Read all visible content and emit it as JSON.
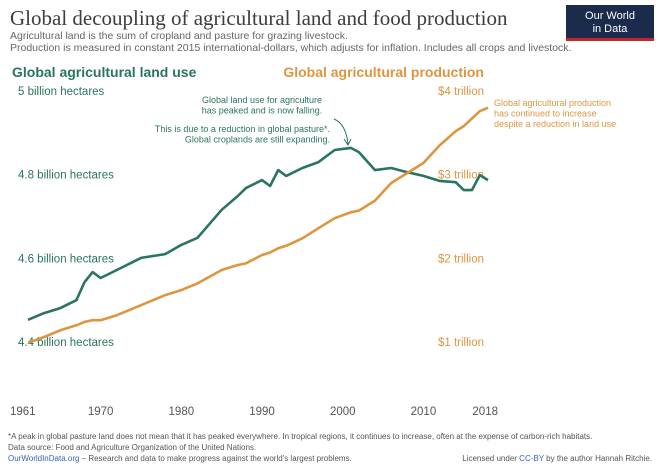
{
  "chart_data": {
    "type": "line",
    "title": "Global decoupling of agricultural land and food production",
    "subtitle": [
      "Agricultural land is the sum of cropland and pasture for grazing livestock.",
      "Production is measured in constant 2015 international-dollars, which adjusts for inflation. Includes all crops and livestock."
    ],
    "x": [
      1961,
      1963,
      1965,
      1967,
      1968,
      1969,
      1970,
      1972,
      1975,
      1978,
      1980,
      1982,
      1985,
      1987,
      1988,
      1990,
      1991,
      1992,
      1993,
      1995,
      1997,
      1999,
      2001,
      2002,
      2004,
      2006,
      2008,
      2010,
      2012,
      2014,
      2015,
      2016,
      2017,
      2018
    ],
    "series": [
      {
        "name": "Global agricultural land use",
        "color": "#2a7461",
        "values": [
          4.453,
          4.469,
          4.481,
          4.5,
          4.543,
          4.567,
          4.553,
          4.572,
          4.601,
          4.61,
          4.632,
          4.649,
          4.716,
          4.749,
          4.768,
          4.787,
          4.773,
          4.811,
          4.797,
          4.816,
          4.83,
          4.859,
          4.864,
          4.854,
          4.811,
          4.816,
          4.806,
          4.797,
          4.785,
          4.782,
          4.763,
          4.763,
          4.799,
          4.787
        ]
      },
      {
        "name": "Global agricultural production",
        "color": "#dd9540",
        "axis": "y2",
        "values": [
          0.99,
          1.06,
          1.14,
          1.2,
          1.24,
          1.26,
          1.26,
          1.32,
          1.44,
          1.56,
          1.62,
          1.7,
          1.86,
          1.92,
          1.94,
          2.04,
          2.07,
          2.12,
          2.15,
          2.24,
          2.36,
          2.48,
          2.55,
          2.57,
          2.69,
          2.9,
          3.02,
          3.14,
          3.35,
          3.52,
          3.58,
          3.67,
          3.76,
          3.8
        ]
      }
    ],
    "xlim": [
      1961,
      2018
    ],
    "xticks": [
      1961,
      1970,
      1980,
      1990,
      2000,
      2010,
      2018
    ],
    "ylim": [
      4.4,
      5.0
    ],
    "yticks": [
      {
        "value": 4.4,
        "label": "4.4 billion hectares"
      },
      {
        "value": 4.6,
        "label": "4.6 billion hectares"
      },
      {
        "value": 4.8,
        "label": "4.8 billion hectares"
      },
      {
        "value": 5,
        "label": "5 billion hectares"
      }
    ],
    "y2lim": [
      1,
      4
    ],
    "y2ticks": [
      {
        "value": 1,
        "label": "$1 trillion"
      },
      {
        "value": 2,
        "label": "$2 trillion"
      },
      {
        "value": 3,
        "label": "$3 trillion"
      },
      {
        "value": 4,
        "label": "$4 trillion"
      }
    ],
    "grid": false,
    "annotations": [
      [
        "Global land use for agriculture",
        "has peaked and is now falling."
      ],
      [
        "This is due to a reduction in global pasture*.",
        "Global croplands are still expanding."
      ],
      [
        "Global agricultural production",
        "has continued to increase",
        "despite a reduction in land use"
      ]
    ]
  },
  "logo": [
    "Our World",
    "in Data"
  ],
  "footnote": "*A peak in global pasture land does not mean that it has peaked everywhere. In tropical regions, it continues to increase, often at the expense of carbon-rich habitats.",
  "source": "Data source: Food and Agriculture Organization of the United Nations.",
  "footer": {
    "site": "OurWorldInData.org",
    "tagline": " – Research and data to make progress against the world's largest problems.",
    "license": [
      "Licensed under ",
      "CC-BY",
      " by the author Hannah Ritchie."
    ]
  }
}
